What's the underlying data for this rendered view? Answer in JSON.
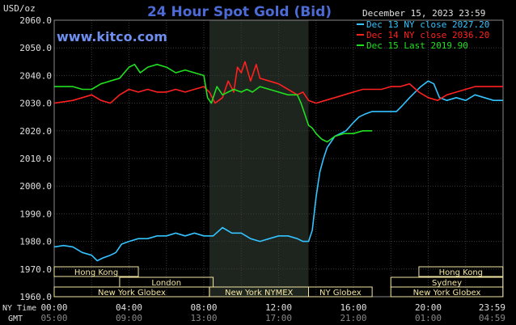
{
  "chart": {
    "title": "24 Hour Spot Gold (Bid)",
    "brand": "www.kitco.com",
    "unit": "USD/oz",
    "date": "December 15, 2023 23:59",
    "tz_left_ny": "NY Time",
    "tz_left_gmt": "GMT"
  },
  "colors": {
    "background": "#000000",
    "grid": "#3a3a3a",
    "nymex_shade": "#1e241e",
    "title": "#4d6bd6",
    "brand": "#6f8ff0",
    "series_cyan": "#33c3ff",
    "series_red": "#ff2020",
    "series_green": "#20e020",
    "session_box": "#f3e6a3",
    "text": "#e0e0e0"
  },
  "chart_data": {
    "type": "line",
    "title": "24 Hour Spot Gold (Bid)",
    "ylabel": "USD/oz",
    "xlabel": "",
    "ylim": [
      1960,
      2060
    ],
    "xlim": [
      0,
      24
    ],
    "yticks": [
      "2060.0",
      "2050.0",
      "2040.0",
      "2030.0",
      "2020.0",
      "2010.0",
      "2000.0",
      "1990.0",
      "1980.0",
      "1970.0",
      "1960.0"
    ],
    "xticks_ny": [
      "00:00",
      "04:00",
      "08:00",
      "12:00",
      "16:00",
      "20:00",
      "23:59"
    ],
    "xticks_gmt": [
      "05:00",
      "09:00",
      "13:00",
      "17:00",
      "21:00",
      "01:00",
      "04:59"
    ],
    "legend": [
      {
        "label": "Dec 13 NY close 2027.20",
        "color": "#33c3ff"
      },
      {
        "label": "Dec 14 NY close 2036.20",
        "color": "#ff2020"
      },
      {
        "label": "Dec 15 Last 2019.90",
        "color": "#20e020"
      }
    ],
    "sessions": [
      {
        "label": "Hong Kong",
        "start": 0,
        "end": 4.5,
        "row": 0
      },
      {
        "label": "London",
        "start": 3.5,
        "end": 8.5,
        "row": 1
      },
      {
        "label": "New York Globex",
        "start": 0,
        "end": 8.3,
        "row": 2
      },
      {
        "label": "New York NYMEX",
        "start": 8.3,
        "end": 13.6,
        "row": 2
      },
      {
        "label": "NY Globex",
        "start": 13.6,
        "end": 17,
        "row": 2
      },
      {
        "label": "Hong Kong",
        "start": 19.5,
        "end": 23.99,
        "row": 0
      },
      {
        "label": "Sydney",
        "start": 18,
        "end": 23.99,
        "row": 1
      },
      {
        "label": "New York Globex",
        "start": 18,
        "end": 23.99,
        "row": 2
      }
    ],
    "nymex_window": [
      8.3,
      13.6
    ],
    "series": [
      {
        "name": "Dec 13 NY close 2027.20",
        "color": "#33c3ff",
        "x": [
          0,
          0.5,
          1,
          1.5,
          2,
          2.3,
          2.6,
          3,
          3.3,
          3.6,
          4,
          4.5,
          5,
          5.5,
          6,
          6.5,
          7,
          7.5,
          8,
          8.5,
          9,
          9.5,
          10,
          10.5,
          11,
          11.5,
          12,
          12.5,
          13,
          13.3,
          13.6,
          13.8,
          14,
          14.2,
          14.4,
          14.6,
          14.8,
          15,
          15.3,
          15.6,
          16,
          16.3,
          16.6,
          17,
          17.5,
          18,
          18.3,
          18.6,
          19,
          19.3,
          19.6,
          20,
          20.3,
          20.6,
          21,
          21.5,
          22,
          22.5,
          23,
          23.5,
          24
        ],
        "y": [
          1978,
          1978.5,
          1978,
          1976,
          1975,
          1973,
          1974,
          1975,
          1976,
          1979,
          1980,
          1981,
          1981,
          1982,
          1982,
          1983,
          1982,
          1983,
          1982,
          1982,
          1985,
          1983,
          1983,
          1981,
          1980,
          1981,
          1982,
          1982,
          1981,
          1980,
          1980,
          1984,
          1996,
          2005,
          2010,
          2014,
          2016,
          2018,
          2019,
          2020,
          2023,
          2025,
          2026,
          2027,
          2027,
          2027,
          2027,
          2029,
          2032,
          2034,
          2036,
          2038,
          2037,
          2032,
          2031,
          2032,
          2031,
          2033,
          2032,
          2031,
          2031
        ]
      },
      {
        "name": "Dec 14 NY close 2036.20",
        "color": "#ff2020",
        "x": [
          0,
          0.5,
          1,
          1.5,
          2,
          2.5,
          3,
          3.5,
          4,
          4.5,
          5,
          5.5,
          6,
          6.5,
          7,
          7.5,
          8,
          8.3,
          8.6,
          9,
          9.3,
          9.6,
          9.8,
          10,
          10.2,
          10.5,
          10.8,
          11,
          11.5,
          12,
          12.5,
          13,
          13.3,
          13.6,
          14,
          14.5,
          15,
          15.5,
          16,
          16.5,
          17,
          17.5,
          18,
          18.5,
          19,
          19.5,
          20,
          20.5,
          21,
          21.5,
          22,
          22.5,
          23,
          23.5,
          24
        ],
        "y": [
          2030,
          2030.5,
          2031,
          2032,
          2033,
          2031,
          2030,
          2033,
          2035,
          2034,
          2035,
          2034,
          2034,
          2035,
          2034,
          2035,
          2036,
          2034,
          2030,
          2032,
          2038,
          2034,
          2043,
          2041,
          2045,
          2038,
          2044,
          2039,
          2038,
          2037,
          2035,
          2033,
          2034,
          2031,
          2030,
          2031,
          2032,
          2033,
          2034,
          2035,
          2035,
          2035,
          2036,
          2036,
          2037,
          2034,
          2032,
          2031,
          2033,
          2034,
          2035,
          2036,
          2036,
          2036,
          2036
        ]
      },
      {
        "name": "Dec 15 Last 2019.90",
        "color": "#20e020",
        "x": [
          0,
          0.5,
          1,
          1.5,
          2,
          2.5,
          3,
          3.5,
          4,
          4.3,
          4.6,
          5,
          5.5,
          6,
          6.5,
          7,
          7.5,
          8,
          8.2,
          8.4,
          8.7,
          9,
          9.3,
          9.6,
          10,
          10.3,
          10.6,
          11,
          11.5,
          12,
          12.5,
          13,
          13.2,
          13.4,
          13.6,
          13.8,
          14,
          14.3,
          14.6,
          15,
          15.5,
          16,
          16.5,
          17
        ],
        "y": [
          2036,
          2036,
          2036,
          2035,
          2035,
          2037,
          2038,
          2039,
          2043,
          2044,
          2041,
          2043,
          2044,
          2043,
          2041,
          2042,
          2041,
          2040,
          2032,
          2030,
          2036,
          2033,
          2034,
          2035,
          2034,
          2035,
          2034,
          2036,
          2035,
          2034,
          2033,
          2033,
          2030,
          2026,
          2022,
          2021,
          2019,
          2017,
          2016,
          2018,
          2019,
          2019,
          2020,
          2020
        ]
      }
    ]
  }
}
